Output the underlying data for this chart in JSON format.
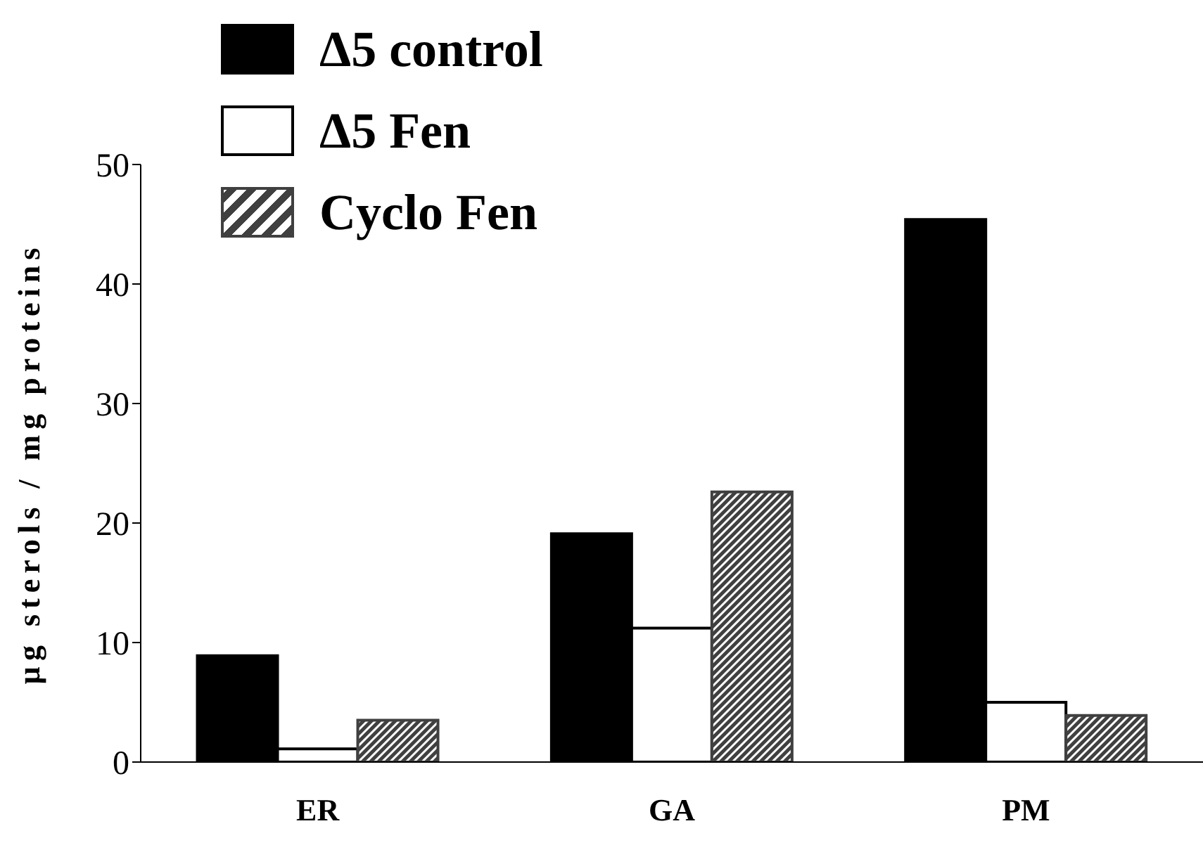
{
  "chart_data": {
    "type": "bar",
    "ylabel": "µg sterols / mg proteins",
    "categories": [
      "ER",
      "GA",
      "PM"
    ],
    "series": [
      {
        "name": "Δ5 control",
        "color": "#000000",
        "values": [
          8.9,
          19.1,
          45.4
        ]
      },
      {
        "name": "Δ5 Fen",
        "color": "#ffffff",
        "values": [
          1.1,
          11.2,
          5.0
        ]
      },
      {
        "name": "Cyclo Fen",
        "color": "#404040",
        "values": [
          3.5,
          22.6,
          3.9
        ]
      }
    ],
    "ylim": [
      0,
      50
    ],
    "yticks": [
      0,
      10,
      20,
      30,
      40,
      50
    ],
    "grid": false,
    "legend": "top left"
  }
}
